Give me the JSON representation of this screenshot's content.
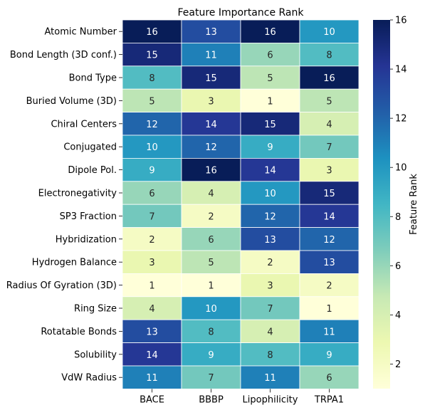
{
  "chart_data": {
    "type": "heatmap",
    "title": "Feature Importance Rank",
    "columns": [
      "BACE",
      "BBBP",
      "Lipophilicity",
      "TRPA1"
    ],
    "rows": [
      "Atomic Number",
      "Bond Length (3D conf.)",
      "Bond Type",
      "Buried Volume (3D)",
      "Chiral Centers",
      "Conjugated",
      "Dipole Pol.",
      "Electronegativity",
      "SP3 Fraction",
      "Hybridization",
      "Hydrogen Balance",
      "Radius Of Gyration (3D)",
      "Ring Size",
      "Rotatable Bonds",
      "Solubility",
      "VdW Radius"
    ],
    "values": [
      [
        16,
        13,
        16,
        10
      ],
      [
        15,
        11,
        6,
        8
      ],
      [
        8,
        15,
        5,
        16
      ],
      [
        5,
        3,
        1,
        5
      ],
      [
        12,
        14,
        15,
        4
      ],
      [
        10,
        12,
        9,
        7
      ],
      [
        9,
        16,
        14,
        3
      ],
      [
        6,
        4,
        10,
        15
      ],
      [
        7,
        2,
        12,
        14
      ],
      [
        2,
        6,
        13,
        12
      ],
      [
        3,
        5,
        2,
        13
      ],
      [
        1,
        1,
        3,
        2
      ],
      [
        4,
        10,
        7,
        1
      ],
      [
        13,
        8,
        4,
        11
      ],
      [
        14,
        9,
        8,
        9
      ],
      [
        11,
        7,
        11,
        6
      ]
    ],
    "colorbar": {
      "label": "Feature Rank",
      "range": [
        1,
        16
      ],
      "ticks": [
        2,
        4,
        6,
        8,
        10,
        12,
        14,
        16
      ],
      "colormap": "YlGnBu",
      "stops": [
        "#ffffd9",
        "#edf8b1",
        "#c7e9b4",
        "#7fcdbb",
        "#41b6c4",
        "#1d91c0",
        "#225ea8",
        "#253494",
        "#081d58"
      ]
    }
  }
}
